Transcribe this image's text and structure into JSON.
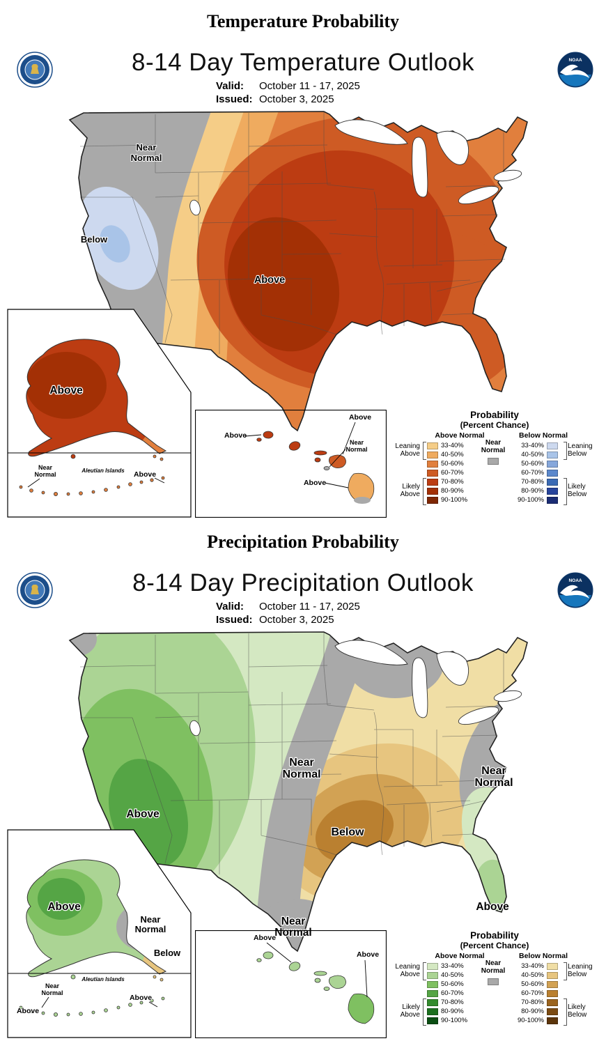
{
  "words": {
    "near": "Near",
    "normal": "Normal",
    "above": "Above",
    "below": "Below",
    "aleutian_islands": "Aleutian Islands"
  },
  "temperature": {
    "section_title": "Temperature Probability",
    "map_title": "8-14 Day Temperature Outlook",
    "valid_label": "Valid:",
    "valid_value": "October 11 - 17, 2025",
    "issued_label": "Issued:",
    "issued_value": "October 3, 2025"
  },
  "precipitation": {
    "section_title": "Precipitation Probability",
    "map_title": "8-14 Day Precipitation Outlook",
    "valid_label": "Valid:",
    "valid_value": "October 11 - 17, 2025",
    "issued_label": "Issued:",
    "issued_value": "October 3, 2025"
  },
  "logos": {
    "noaa": "NOAA"
  },
  "legend": {
    "title": "Probability",
    "subtitle": "(Percent Chance)",
    "above_header": "Above Normal",
    "below_header": "Below Normal",
    "near_line1": "Near",
    "near_line2": "Normal",
    "rows": [
      "33-40%",
      "40-50%",
      "50-60%",
      "60-70%",
      "70-80%",
      "80-90%",
      "90-100%"
    ],
    "side_leaning": "Leaning",
    "side_likely": "Likely",
    "side_above": "Above",
    "side_below": "Below"
  },
  "scales": {
    "near": "#A9A9A9",
    "temp_above": [
      "#F5CD87",
      "#EFAB5F",
      "#E17F3D",
      "#CE5B24",
      "#BC3C12",
      "#A33005",
      "#7F2704"
    ],
    "temp_below": [
      "#CDD9EF",
      "#A9C4E8",
      "#86A7DB",
      "#5B88CC",
      "#3B6BB5",
      "#27449C",
      "#1B2C74"
    ],
    "precip_above": [
      "#D4E8C2",
      "#ABD494",
      "#7FC061",
      "#55A545",
      "#338B2D",
      "#1C701F",
      "#0B4E13"
    ],
    "precip_below": [
      "#F0DEA5",
      "#E7C57F",
      "#D2A254",
      "#BA8030",
      "#9B641F",
      "#7C4B12",
      "#5C350B"
    ]
  }
}
